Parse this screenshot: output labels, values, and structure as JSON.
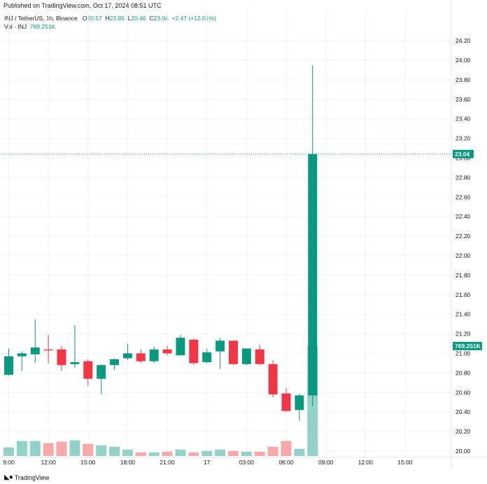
{
  "header": {
    "published": "Published on TradingView.com, Oct 17, 2024 08:51 UTC",
    "symbol": "INJ / TetherUS, 1h, Binance",
    "open_label": "O",
    "open": "20.57",
    "high_label": "H",
    "high": "23.95",
    "low_label": "L",
    "low": "20.46",
    "close_label": "C",
    "close": "23.04",
    "change": "+2.47 (+12.01%)",
    "vol_label": "Vol · INJ",
    "vol_value": "769.251K"
  },
  "footer": {
    "logo_icon": "tradingview-logo-icon",
    "brand": "TradingView"
  },
  "colors": {
    "up": "#089981",
    "down": "#f23645",
    "vol_up": "#92d2c9",
    "vol_down": "#f7a9a7",
    "grid": "#f0f3fa"
  },
  "chart_data": {
    "type": "candlestick",
    "y_ticks": [
      "20.00",
      "20.20",
      "20.40",
      "20.60",
      "20.80",
      "21.00",
      "21.20",
      "21.40",
      "21.60",
      "21.80",
      "22.00",
      "22.20",
      "22.40",
      "22.60",
      "22.80",
      "23.00",
      "23.20",
      "23.40",
      "23.60",
      "23.80",
      "24.00",
      "24.20"
    ],
    "ylim": [
      19.96,
      24.24
    ],
    "x_ticks": [
      {
        "label": "9:00",
        "i": 0
      },
      {
        "label": "12:00",
        "i": 3
      },
      {
        "label": "15:00",
        "i": 6
      },
      {
        "label": "18:00",
        "i": 9
      },
      {
        "label": "21:00",
        "i": 12
      },
      {
        "label": "17",
        "i": 15
      },
      {
        "label": "03:00",
        "i": 18
      },
      {
        "label": "06:00",
        "i": 21
      },
      {
        "label": "09:00",
        "i": 24
      },
      {
        "label": "12:00",
        "i": 27
      },
      {
        "label": "15:00",
        "i": 30
      }
    ],
    "last_price": "23.04",
    "last_volume": "769.251K",
    "candles": [
      {
        "o": 20.78,
        "h": 21.05,
        "l": 20.77,
        "c": 20.97,
        "v": 60
      },
      {
        "o": 20.97,
        "h": 21.02,
        "l": 20.82,
        "c": 21.0,
        "v": 105
      },
      {
        "o": 20.99,
        "h": 21.35,
        "l": 20.9,
        "c": 21.06,
        "v": 105
      },
      {
        "o": 21.04,
        "h": 21.19,
        "l": 20.9,
        "c": 21.03,
        "v": 90
      },
      {
        "o": 21.04,
        "h": 21.08,
        "l": 20.82,
        "c": 20.88,
        "v": 100
      },
      {
        "o": 20.89,
        "h": 21.29,
        "l": 20.85,
        "c": 20.91,
        "v": 110
      },
      {
        "o": 20.92,
        "h": 20.94,
        "l": 20.67,
        "c": 20.74,
        "v": 85
      },
      {
        "o": 20.74,
        "h": 20.89,
        "l": 20.58,
        "c": 20.88,
        "v": 75
      },
      {
        "o": 20.88,
        "h": 20.95,
        "l": 20.83,
        "c": 20.94,
        "v": 65
      },
      {
        "o": 20.95,
        "h": 21.1,
        "l": 20.93,
        "c": 21.0,
        "v": 45
      },
      {
        "o": 21.0,
        "h": 21.04,
        "l": 20.9,
        "c": 20.92,
        "v": 25
      },
      {
        "o": 20.92,
        "h": 21.07,
        "l": 20.9,
        "c": 21.04,
        "v": 25
      },
      {
        "o": 21.04,
        "h": 21.08,
        "l": 20.98,
        "c": 21.0,
        "v": 30
      },
      {
        "o": 20.98,
        "h": 21.19,
        "l": 20.98,
        "c": 21.16,
        "v": 45
      },
      {
        "o": 21.14,
        "h": 21.15,
        "l": 20.88,
        "c": 20.9,
        "v": 25
      },
      {
        "o": 20.91,
        "h": 21.05,
        "l": 20.9,
        "c": 21.01,
        "v": 35
      },
      {
        "o": 21.02,
        "h": 21.16,
        "l": 20.84,
        "c": 21.13,
        "v": 45
      },
      {
        "o": 21.13,
        "h": 21.13,
        "l": 20.88,
        "c": 20.89,
        "v": 35
      },
      {
        "o": 20.89,
        "h": 21.05,
        "l": 20.88,
        "c": 21.05,
        "v": 30
      },
      {
        "o": 21.04,
        "h": 21.09,
        "l": 20.88,
        "c": 20.89,
        "v": 30
      },
      {
        "o": 20.89,
        "h": 20.93,
        "l": 20.55,
        "c": 20.58,
        "v": 65
      },
      {
        "o": 20.59,
        "h": 20.64,
        "l": 20.4,
        "c": 20.41,
        "v": 105
      },
      {
        "o": 20.42,
        "h": 20.59,
        "l": 20.31,
        "c": 20.57,
        "v": 50
      },
      {
        "o": 20.57,
        "h": 23.95,
        "l": 20.46,
        "c": 23.04,
        "v": 769
      }
    ]
  }
}
